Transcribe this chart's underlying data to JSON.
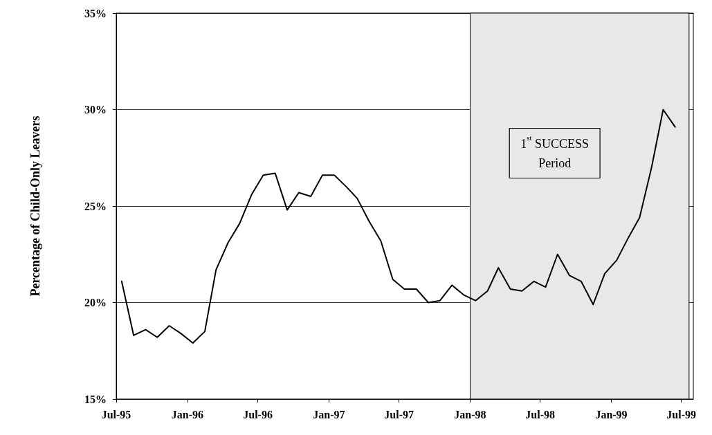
{
  "chart_data": {
    "type": "line",
    "ylabel": "Percentage of Child-Only Leavers",
    "x": [
      "1995-07-15",
      "1995-08-15",
      "1995-09-15",
      "1995-10-15",
      "1995-11-15",
      "1995-12-15",
      "1996-01-15",
      "1996-02-15",
      "1996-03-15",
      "1996-04-15",
      "1996-05-15",
      "1996-06-15",
      "1996-07-15",
      "1996-08-15",
      "1996-09-15",
      "1996-10-15",
      "1996-11-15",
      "1996-12-15",
      "1997-01-15",
      "1997-02-15",
      "1997-03-15",
      "1997-04-15",
      "1997-05-15",
      "1997-06-15",
      "1997-07-15",
      "1997-08-15",
      "1997-09-15",
      "1997-10-15",
      "1997-11-15",
      "1997-12-15",
      "1998-01-15",
      "1998-02-15",
      "1998-03-15",
      "1998-04-15",
      "1998-05-15",
      "1998-06-15",
      "1998-07-15",
      "1998-08-15",
      "1998-09-15",
      "1998-10-15",
      "1998-11-15",
      "1998-12-15",
      "1999-01-15",
      "1999-02-15",
      "1999-03-15",
      "1999-04-15",
      "1999-05-15",
      "1999-06-15"
    ],
    "series": [
      {
        "color": "#000000",
        "values": [
          21.1,
          18.3,
          18.6,
          18.2,
          18.8,
          18.4,
          17.9,
          18.5,
          21.7,
          23.1,
          24.1,
          25.6,
          26.6,
          26.7,
          24.8,
          25.7,
          25.5,
          26.6,
          26.6,
          26.0,
          25.4,
          24.2,
          23.2,
          21.2,
          20.7,
          20.7,
          20.0,
          20.1,
          20.9,
          20.4,
          20.1,
          20.6,
          21.8,
          20.7,
          20.6,
          21.1,
          20.8,
          22.5,
          21.4,
          21.1,
          19.9,
          21.5,
          22.2,
          23.4,
          24.4,
          27.0,
          30.0,
          29.1
        ]
      }
    ],
    "xlim": [
      "1995-07",
      "1999-08"
    ],
    "xticks": [
      {
        "value": "1995-07",
        "label": "Jul-95"
      },
      {
        "value": "1996-01",
        "label": "Jan-96"
      },
      {
        "value": "1996-07",
        "label": "Jul-96"
      },
      {
        "value": "1997-01",
        "label": "Jan-97"
      },
      {
        "value": "1997-07",
        "label": "Jul-97"
      },
      {
        "value": "1998-01",
        "label": "Jan-98"
      },
      {
        "value": "1998-07",
        "label": "Jul-98"
      },
      {
        "value": "1999-01",
        "label": "Jan-99"
      },
      {
        "value": "1999-07",
        "label": "Jul-99"
      }
    ],
    "ylim": [
      15,
      35
    ],
    "yticks": [
      {
        "value": 15,
        "label": "15%"
      },
      {
        "value": 20,
        "label": "20%"
      },
      {
        "value": 25,
        "label": "25%"
      },
      {
        "value": 30,
        "label": "30%"
      },
      {
        "value": 35,
        "label": "35%"
      }
    ],
    "bands": [
      {
        "axis": "x",
        "from": "1998-01",
        "to": "1999-07-21",
        "label": "1$^{st}$ SUCCESS Period",
        "color": "#e8e8e8"
      }
    ],
    "grid": "y",
    "marker": "none",
    "line_style": "solid"
  }
}
